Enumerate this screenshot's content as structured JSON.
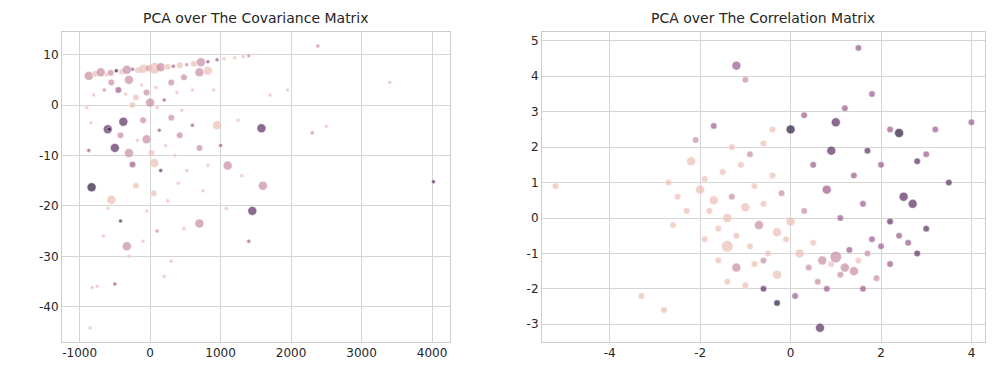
{
  "chart_data": [
    {
      "type": "scatter",
      "title": "PCA over The Covariance Matrix",
      "x": [
        -870,
        -780,
        -700,
        -620,
        -560,
        -480,
        -400,
        -330,
        -250,
        -170,
        -100,
        -20,
        60,
        150,
        250,
        330,
        420,
        520,
        620,
        720,
        820,
        950,
        1050,
        1200,
        1400,
        -800,
        -650,
        -550,
        -450,
        -350,
        -300,
        -200,
        -120,
        -50,
        0,
        80,
        200,
        300,
        380,
        480,
        600,
        700,
        820,
        -250,
        100,
        450,
        900,
        1700,
        1950,
        3400,
        2380,
        1320,
        -900,
        -870,
        -840,
        -600,
        -580,
        -500,
        -420,
        -380,
        -300,
        -250,
        -180,
        -100,
        -50,
        20,
        60,
        130,
        220,
        300,
        350,
        420,
        520,
        600,
        700,
        820,
        950,
        1000,
        1100,
        1450,
        1600,
        1580,
        2300,
        2500,
        4020,
        1250,
        1300,
        -830,
        -850,
        -820,
        -750,
        -660,
        -500,
        -550,
        -600,
        -420,
        -330,
        -300,
        -200,
        -100,
        -50,
        50,
        100,
        150,
        250,
        300,
        400,
        480,
        700,
        750,
        1080,
        1400,
        200
      ],
      "y": [
        5.8,
        6.2,
        6.5,
        6.0,
        6.4,
        6.8,
        6.6,
        7.0,
        7.1,
        6.9,
        7.2,
        7.3,
        7.3,
        7.5,
        7.6,
        7.7,
        7.9,
        8.0,
        8.2,
        8.5,
        8.6,
        9.0,
        9.2,
        9.4,
        9.8,
        2.0,
        3.0,
        4.5,
        3.0,
        2.2,
        5.0,
        1.5,
        4.0,
        2.5,
        0.5,
        3.5,
        1.0,
        4.5,
        2.5,
        5.5,
        3.0,
        6.5,
        6.8,
        0.0,
        -0.5,
        -1.0,
        3.0,
        2.0,
        3.0,
        4.5,
        11.7,
        9.6,
        -0.5,
        -9.0,
        -3.5,
        -4.8,
        -4.8,
        -8.5,
        -6.0,
        -3.3,
        -9.5,
        -11.8,
        -7.0,
        -3.0,
        -6.8,
        -9.5,
        -11.5,
        -5.0,
        -8.0,
        -2.5,
        -10.0,
        -6.0,
        -13.0,
        -4.0,
        -8.5,
        -12.0,
        -4.0,
        -8.0,
        -12.0,
        -21.0,
        -16.0,
        -4.6,
        -5.5,
        -4.2,
        -15.2,
        -3.0,
        -14.0,
        -16.3,
        -44.2,
        -36.2,
        -36.0,
        -26.0,
        -35.5,
        -18.8,
        -20.5,
        -23.0,
        -28.0,
        -30.0,
        -16.0,
        -27.0,
        -21.0,
        -17.5,
        -25.0,
        -13.0,
        -19.0,
        -31.0,
        -15.5,
        -24.5,
        -23.5,
        -17.0,
        -20.5,
        -27.0,
        -34.0
      ],
      "colors": [
        "#c98ca0",
        "#ecbfb6",
        "#c98ca0",
        "#ecbfb6",
        "#c98ca0",
        "#2b1b3c",
        "#ecbfb6",
        "#c98ca0",
        "#9a5a8c",
        "#ecbfb6",
        "#ecbfb6",
        "#c98ca0",
        "#ecbfb6",
        "#c98ca0",
        "#ecbfb6",
        "#9a5a8c",
        "#ecbfb6",
        "#c98ca0",
        "#ecbfb6",
        "#c98ca0",
        "#9a5a8c",
        "#9a5a8c",
        "#ecbfb6",
        "#ecbfb6",
        "#c98ca0",
        "#ecbfb6",
        "#c98ca0",
        "#c98ca0",
        "#9a5a8c",
        "#ecbfb6",
        "#c98ca0",
        "#ecbfb6",
        "#ecbfb6",
        "#c98ca0",
        "#c98ca0",
        "#ecbfb6",
        "#9a5a8c",
        "#c98ca0",
        "#ecbfb6",
        "#c98ca0",
        "#ecbfb6",
        "#c98ca0",
        "#ecbfb6",
        "#ecbfb6",
        "#ecbfb6",
        "#ecbfb6",
        "#ecbfb6",
        "#ecbfb6",
        "#ecbfb6",
        "#ecbfb6",
        "#c98ca0",
        "#ecbfb6",
        "#ecbfb6",
        "#9a5a8c",
        "#ecbfb6",
        "#5b2d60",
        "#2b1b3c",
        "#5b2d60",
        "#c98ca0",
        "#5b2d60",
        "#c98ca0",
        "#9a5a8c",
        "#ecbfb6",
        "#c98ca0",
        "#c98ca0",
        "#ecbfb6",
        "#ecbfb6",
        "#9a5a8c",
        "#ecbfb6",
        "#c98ca0",
        "#ecbfb6",
        "#c98ca0",
        "#ecbfb6",
        "#9a5a8c",
        "#c98ca0",
        "#ecbfb6",
        "#ecbfb6",
        "#9a5a8c",
        "#c98ca0",
        "#5b2d60",
        "#c98ca0",
        "#5b2d60",
        "#c98ca0",
        "#ecbfb6",
        "#5b2d60",
        "#ecbfb6",
        "#ecbfb6",
        "#2b1b3c",
        "#ecbfb6",
        "#ecbfb6",
        "#ecbfb6",
        "#ecbfb6",
        "#9a5a8c",
        "#ecbfb6",
        "#ecbfb6",
        "#5b2d60",
        "#c98ca0",
        "#ecbfb6",
        "#ecbfb6",
        "#ecbfb6",
        "#ecbfb6",
        "#ecbfb6",
        "#c98ca0",
        "#5b2d60",
        "#ecbfb6",
        "#ecbfb6",
        "#ecbfb6",
        "#ecbfb6",
        "#c98ca0",
        "#ecbfb6",
        "#ecbfb6",
        "#9a5a8c",
        "#ecbfb6"
      ],
      "sizes": [
        3,
        2,
        3,
        1,
        2,
        1,
        2,
        3,
        1,
        2,
        3,
        2,
        4,
        3,
        2,
        1,
        2,
        1,
        2,
        3,
        1,
        1,
        1,
        1,
        1,
        1,
        1,
        2,
        2,
        1,
        3,
        2,
        1,
        2,
        3,
        1,
        1,
        2,
        1,
        2,
        1,
        3,
        3,
        2,
        1,
        1,
        1,
        1,
        1,
        1,
        1,
        1,
        1,
        1,
        1,
        3,
        1,
        3,
        2,
        3,
        3,
        2,
        1,
        2,
        3,
        2,
        3,
        1,
        1,
        2,
        1,
        2,
        1,
        1,
        2,
        1,
        3,
        1,
        3,
        3,
        3,
        3,
        1,
        1,
        1,
        1,
        1,
        3,
        1,
        1,
        1,
        1,
        1,
        3,
        1,
        1,
        3,
        1,
        2,
        1,
        1,
        2,
        1,
        1,
        1,
        1,
        1,
        1,
        3,
        1,
        1,
        1,
        1
      ],
      "xlim": [
        -1250,
        4250
      ],
      "ylim": [
        -47,
        14.5
      ],
      "xticks": [
        -1000,
        0,
        1000,
        2000,
        3000,
        4000
      ],
      "yticks": [
        -40,
        -30,
        -20,
        -10,
        0,
        10
      ],
      "grid": true
    },
    {
      "type": "scatter",
      "title": "PCA over The Correlation Matrix",
      "x": [
        -2.0,
        -1.9,
        -1.8,
        -1.7,
        -1.6,
        -1.5,
        -1.4,
        -1.3,
        -1.2,
        -1.1,
        -1.0,
        -0.9,
        -0.8,
        -0.7,
        -0.6,
        -0.5,
        -0.4,
        -0.3,
        -0.2,
        -0.1,
        0.0,
        -2.3,
        -2.5,
        -2.2,
        -1.9,
        -1.6,
        -1.4,
        -1.2,
        -1.0,
        -0.8,
        -2.6,
        -2.7,
        -2.1,
        -1.3,
        -0.6,
        -0.9,
        -1.7,
        -1.2,
        -1.0,
        -0.4,
        -5.2,
        -3.3,
        -2.8,
        -1.4,
        -0.3,
        -0.6,
        0.2,
        0.4,
        0.5,
        0.6,
        0.7,
        0.8,
        0.9,
        1.0,
        1.1,
        1.2,
        1.3,
        1.4,
        1.5,
        1.6,
        1.7,
        1.8,
        1.9,
        2.0,
        2.2,
        2.4,
        2.6,
        2.8,
        3.0,
        0.65,
        0.1,
        -0.3,
        -0.6,
        0.0,
        0.3,
        0.5,
        0.8,
        0.9,
        1.0,
        1.2,
        1.4,
        1.6,
        1.8,
        2.0,
        2.2,
        2.4,
        2.5,
        2.7,
        2.8,
        3.0,
        3.2,
        3.5,
        4.0,
        1.5,
        1.1,
        0.3,
        2.2,
        1.7
      ],
      "y": [
        0.8,
        1.1,
        0.2,
        0.5,
        -0.3,
        1.3,
        0.0,
        0.6,
        -0.5,
        1.5,
        0.3,
        -0.8,
        0.9,
        -0.2,
        0.4,
        -1.0,
        1.2,
        -0.4,
        0.7,
        -0.6,
        -0.1,
        0.2,
        0.6,
        1.6,
        -0.6,
        -1.2,
        -1.8,
        -1.4,
        -1.9,
        -1.3,
        -0.2,
        1.0,
        2.2,
        2.0,
        2.1,
        1.8,
        2.6,
        4.3,
        3.9,
        2.5,
        0.9,
        -2.2,
        -2.6,
        -0.8,
        -1.6,
        -1.2,
        -1.0,
        -1.4,
        -0.7,
        -1.8,
        -1.2,
        -2.0,
        -1.3,
        -1.1,
        -1.6,
        -1.4,
        -0.9,
        -1.5,
        -1.2,
        -2.0,
        -1.0,
        -0.6,
        -1.7,
        -0.8,
        -1.3,
        -0.5,
        -0.7,
        -1.0,
        -0.3,
        -3.1,
        -2.2,
        -2.4,
        -2.0,
        2.5,
        2.9,
        1.5,
        0.8,
        1.9,
        2.7,
        3.1,
        1.2,
        0.4,
        3.5,
        1.5,
        2.5,
        2.4,
        0.6,
        0.4,
        1.6,
        1.8,
        2.5,
        1.0,
        2.7,
        4.8,
        0.0,
        0.2,
        -0.1,
        1.9
      ],
      "colors": [
        "#ecbfb6",
        "#ecbfb6",
        "#ecbfb6",
        "#ecbfb6",
        "#ecbfb6",
        "#ecbfb6",
        "#ecbfb6",
        "#c98ca0",
        "#ecbfb6",
        "#ecbfb6",
        "#ecbfb6",
        "#ecbfb6",
        "#ecbfb6",
        "#c98ca0",
        "#ecbfb6",
        "#ecbfb6",
        "#ecbfb6",
        "#ecbfb6",
        "#c98ca0",
        "#ecbfb6",
        "#ecbfb6",
        "#ecbfb6",
        "#ecbfb6",
        "#ecbfb6",
        "#ecbfb6",
        "#ecbfb6",
        "#ecbfb6",
        "#c98ca0",
        "#ecbfb6",
        "#ecbfb6",
        "#ecbfb6",
        "#ecbfb6",
        "#c98ca0",
        "#ecbfb6",
        "#ecbfb6",
        "#c98ca0",
        "#9a5a8c",
        "#9a5a8c",
        "#c98ca0",
        "#ecbfb6",
        "#ecbfb6",
        "#ecbfb6",
        "#ecbfb6",
        "#ecbfb6",
        "#ecbfb6",
        "#c98ca0",
        "#ecbfb6",
        "#c98ca0",
        "#ecbfb6",
        "#c98ca0",
        "#c98ca0",
        "#9a5a8c",
        "#ecbfb6",
        "#c98ca0",
        "#c98ca0",
        "#c98ca0",
        "#9a5a8c",
        "#c98ca0",
        "#ecbfb6",
        "#9a5a8c",
        "#c98ca0",
        "#9a5a8c",
        "#c98ca0",
        "#9a5a8c",
        "#9a5a8c",
        "#9a5a8c",
        "#9a5a8c",
        "#5b2d60",
        "#5b2d60",
        "#5b2d60",
        "#9a5a8c",
        "#2b1b3c",
        "#5b2d60",
        "#2b1b3c",
        "#9a5a8c",
        "#9a5a8c",
        "#9a5a8c",
        "#5b2d60",
        "#5b2d60",
        "#9a5a8c",
        "#9a5a8c",
        "#9a5a8c",
        "#9a5a8c",
        "#9a5a8c",
        "#9a5a8c",
        "#2b1b3c",
        "#5b2d60",
        "#5b2d60",
        "#5b2d60",
        "#9a5a8c",
        "#9a5a8c",
        "#5b2d60",
        "#9a5a8c",
        "#9a5a8c",
        "#9a5a8c",
        "#c98ca0",
        "#5b2d60",
        "#5b2d60"
      ],
      "sizes": [
        3,
        2,
        2,
        3,
        2,
        2,
        3,
        2,
        2,
        2,
        3,
        2,
        2,
        3,
        2,
        2,
        2,
        3,
        2,
        2,
        3,
        2,
        2,
        3,
        2,
        2,
        2,
        3,
        2,
        2,
        2,
        2,
        2,
        2,
        2,
        2,
        2,
        3,
        2,
        2,
        2,
        2,
        2,
        4,
        3,
        2,
        3,
        2,
        2,
        2,
        3,
        2,
        2,
        4,
        2,
        3,
        2,
        3,
        2,
        2,
        2,
        2,
        2,
        2,
        2,
        2,
        2,
        2,
        2,
        3,
        2,
        2,
        2,
        3,
        2,
        2,
        3,
        3,
        3,
        2,
        2,
        2,
        2,
        2,
        2,
        3,
        3,
        3,
        2,
        2,
        2,
        2,
        2,
        2,
        2,
        2,
        2,
        2
      ],
      "xlim": [
        -5.5,
        4.3
      ],
      "ylim": [
        -3.5,
        5.25
      ],
      "xticks": [
        -4,
        -2,
        0,
        2,
        4
      ],
      "yticks": [
        -3,
        -2,
        -1,
        0,
        1,
        2,
        3,
        4,
        5
      ],
      "grid": true
    }
  ]
}
